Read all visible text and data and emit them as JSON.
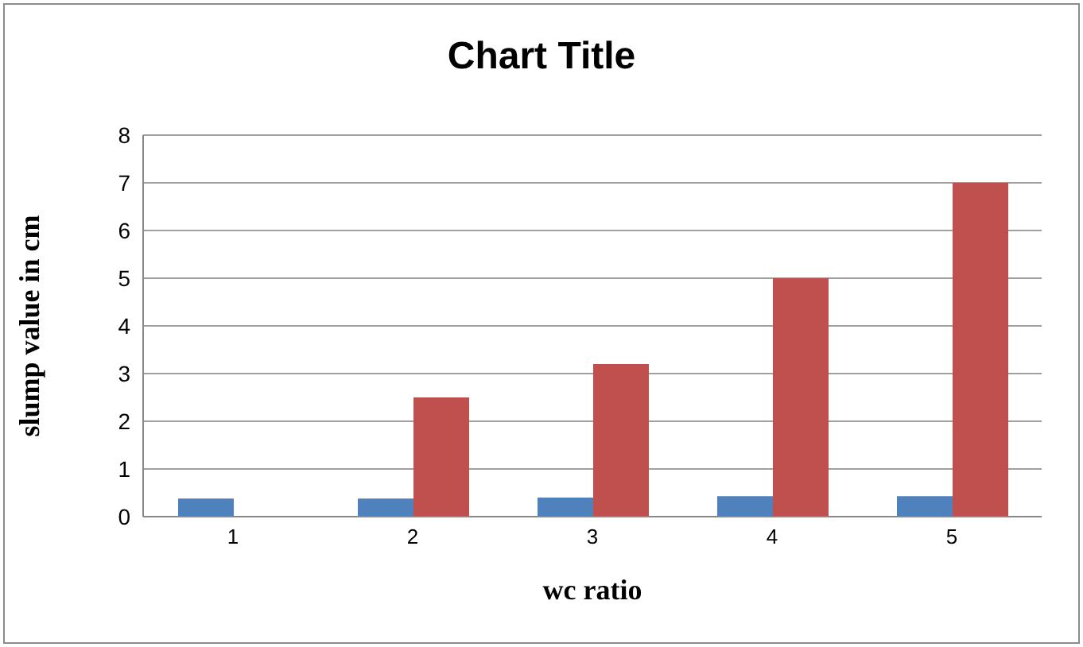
{
  "chart_data": {
    "type": "bar",
    "title": "Chart Title",
    "xlabel": "wc ratio",
    "ylabel": "slump value in cm",
    "categories": [
      "1",
      "2",
      "3",
      "4",
      "5"
    ],
    "series": [
      {
        "color": "#4f81bd",
        "values": [
          0.38,
          0.38,
          0.4,
          0.43,
          0.43
        ]
      },
      {
        "color": "#c0504d",
        "values": [
          null,
          2.5,
          3.2,
          5,
          7
        ]
      }
    ],
    "ylim": [
      0,
      8
    ],
    "yticks": [
      0,
      1,
      2,
      3,
      4,
      5,
      6,
      7,
      8
    ],
    "grid": "y"
  }
}
